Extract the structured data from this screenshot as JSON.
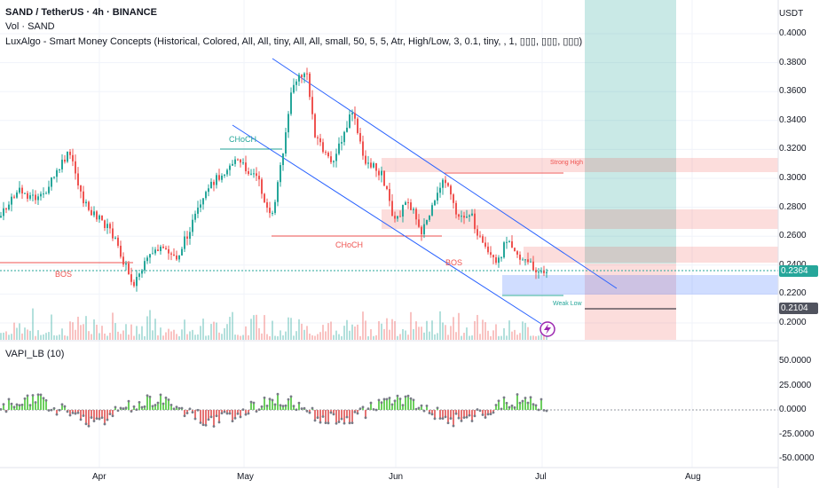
{
  "header": {
    "symbol_line": "SAND / TetherUS · 4h · BINANCE",
    "volume_line": "Vol · SAND",
    "indicator_line": "LuxAlgo - Smart Money Concepts (Historical, Colored, All, All, tiny, All, All, small, 50, 5, 5, Atr, High/Low, 3, 0.1, tiny, , 1, ▯▯▯, ▯▯▯, ▯▯▯)",
    "oscillator_line": "VAPI_LB (10)"
  },
  "currency": "USDT",
  "price_axis": [
    "0.4000",
    "0.3800",
    "0.3600",
    "0.3400",
    "0.3200",
    "0.3000",
    "0.2800",
    "0.2600",
    "0.2400",
    "0.2200",
    "0.2000"
  ],
  "price_tags": {
    "last": "0.2364",
    "level": "0.2104"
  },
  "osc_axis": [
    "50.0000",
    "25.0000",
    "0.0000",
    "-25.0000",
    "-50.0000"
  ],
  "time_axis": [
    "Apr",
    "May",
    "Jun",
    "Jul",
    "Aug"
  ],
  "labels": {
    "choch_upper": "CHoCH",
    "choch_mid": "CHoCH",
    "bos_left": "BOS",
    "bos_mid": "BOS",
    "strong_high": "Strong High",
    "weak_low": "Weak Low"
  },
  "colors": {
    "up": "#26a69a",
    "down": "#ef5350",
    "channel": "#2962ff",
    "osc_up": "#6ccf5e",
    "osc_down": "#e57373",
    "target": "#26a69a",
    "last_tag": "#26a69a",
    "level_tag": "#50535e"
  },
  "chart_data": {
    "type": "candlestick",
    "price_range": [
      0.195,
      0.41
    ],
    "last_price": 0.2364,
    "weak_low_level": 0.2104,
    "osc_range": [
      -55,
      60
    ]
  }
}
